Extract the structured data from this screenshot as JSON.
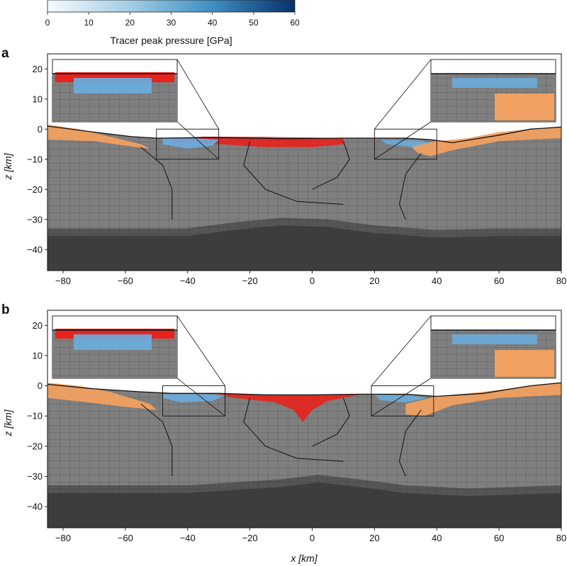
{
  "chart_data": {
    "type": "cross-section",
    "colorbar": {
      "label": "Tracer peak pressure [GPa]",
      "range": [
        0,
        60
      ],
      "ticks": [
        "0",
        "10",
        "20",
        "30",
        "40",
        "50",
        "60"
      ],
      "colors": [
        "#f7fbff",
        "#9ecae1",
        "#4292c6",
        "#08306b"
      ]
    },
    "xlabel": "x [km]",
    "ylabel": "z [km]",
    "xlim": [
      -85,
      80
    ],
    "ylim": [
      -47,
      25
    ],
    "xticks": [
      "−80",
      "−60",
      "−40",
      "−20",
      "0",
      "20",
      "40",
      "60",
      "80"
    ],
    "yticks": [
      "20",
      "10",
      "0",
      "−10",
      "−20",
      "−30",
      "−40"
    ],
    "xtick_values": [
      -80,
      -60,
      -40,
      -20,
      0,
      20,
      40,
      60,
      80
    ],
    "ytick_values": [
      20,
      10,
      0,
      -10,
      -20,
      -30,
      -40
    ],
    "colors": {
      "sediment": "#f0a060",
      "crust": "#7f7f7f",
      "mantle": "#3d3d3d",
      "melt": "#e8221c",
      "shocked": "#6aaee0"
    },
    "panels": [
      {
        "letter": "a",
        "show_xlabel": false,
        "surface": [
          [
            -85,
            1.0
          ],
          [
            -70,
            -1.0
          ],
          [
            -58,
            -2.5
          ],
          [
            -50,
            -3.0
          ],
          [
            -30,
            -2.8
          ],
          [
            -10,
            -3.2
          ],
          [
            10,
            -3.0
          ],
          [
            30,
            -3.0
          ],
          [
            38,
            -3.5
          ],
          [
            45,
            -4.5
          ],
          [
            60,
            -2.0
          ],
          [
            70,
            0.0
          ],
          [
            80,
            0.7
          ]
        ],
        "sediment_left": [
          [
            -85,
            1.5
          ],
          [
            -75,
            0.0
          ],
          [
            -65,
            -2.5
          ],
          [
            -55,
            -5.0
          ],
          [
            -52,
            -6.5
          ],
          [
            -60,
            -5.5
          ],
          [
            -70,
            -4.0
          ],
          [
            -85,
            -3.5
          ]
        ],
        "sediment_right": [
          [
            33,
            -5.0
          ],
          [
            40,
            -4.0
          ],
          [
            50,
            -3.0
          ],
          [
            60,
            -1.0
          ],
          [
            70,
            0.0
          ],
          [
            80,
            0.7
          ],
          [
            80,
            -3.0
          ],
          [
            60,
            -4.0
          ],
          [
            45,
            -7.0
          ],
          [
            38,
            -9.0
          ],
          [
            34,
            -8.0
          ],
          [
            32,
            -6.0
          ]
        ],
        "moho": [
          [
            -85,
            -33
          ],
          [
            -40,
            -33
          ],
          [
            -25,
            -31
          ],
          [
            -10,
            -29.5
          ],
          [
            5,
            -30
          ],
          [
            20,
            -32
          ],
          [
            40,
            -33.5
          ],
          [
            60,
            -33
          ],
          [
            80,
            -33
          ]
        ],
        "melt_zone": [
          [
            -45,
            -3.0
          ],
          [
            -35,
            -2.5
          ],
          [
            -15,
            -2.6
          ],
          [
            0,
            -2.8
          ],
          [
            10,
            -3.0
          ],
          [
            10,
            -5.0
          ],
          [
            0,
            -6.0
          ],
          [
            -15,
            -6.0
          ],
          [
            -30,
            -5.0
          ],
          [
            -45,
            -4.5
          ]
        ],
        "shocked_zone": [
          [
            -48,
            -3.0
          ],
          [
            -38,
            -3.0
          ],
          [
            -30,
            -3.5
          ],
          [
            -32,
            -5.5
          ],
          [
            -40,
            -6.5
          ],
          [
            -48,
            -5.0
          ]
        ],
        "shocked_zone_right": [
          [
            22,
            -3.5
          ],
          [
            34,
            -3.8
          ],
          [
            38,
            -4.5
          ],
          [
            32,
            -6.0
          ],
          [
            24,
            -5.0
          ]
        ],
        "zoom_left": [
          -50,
          -30,
          -10,
          0
        ],
        "zoom_right": [
          20,
          40,
          -10,
          0
        ]
      },
      {
        "letter": "b",
        "show_xlabel": true,
        "surface": [
          [
            -85,
            0.5
          ],
          [
            -70,
            -1.0
          ],
          [
            -55,
            -2.0
          ],
          [
            -45,
            -2.5
          ],
          [
            -30,
            -2.5
          ],
          [
            -15,
            -3.0
          ],
          [
            0,
            -3.0
          ],
          [
            15,
            -2.8
          ],
          [
            30,
            -2.8
          ],
          [
            40,
            -3.5
          ],
          [
            55,
            -2.5
          ],
          [
            70,
            0.0
          ],
          [
            80,
            1.0
          ]
        ],
        "sediment_left": [
          [
            -85,
            1.0
          ],
          [
            -75,
            0.0
          ],
          [
            -65,
            -2.0
          ],
          [
            -52,
            -6.0
          ],
          [
            -50,
            -8.0
          ],
          [
            -60,
            -7.0
          ],
          [
            -72,
            -5.5
          ],
          [
            -85,
            -4.0
          ]
        ],
        "sediment_right": [
          [
            30,
            -6.0
          ],
          [
            40,
            -3.5
          ],
          [
            55,
            -2.0
          ],
          [
            70,
            0.0
          ],
          [
            80,
            1.0
          ],
          [
            80,
            -3.0
          ],
          [
            60,
            -4.0
          ],
          [
            45,
            -6.5
          ],
          [
            36,
            -10.0
          ],
          [
            30,
            -9.5
          ]
        ],
        "moho": [
          [
            -85,
            -33
          ],
          [
            -40,
            -33
          ],
          [
            -25,
            -32
          ],
          [
            -10,
            -31
          ],
          [
            2,
            -29.5
          ],
          [
            15,
            -31
          ],
          [
            30,
            -33
          ],
          [
            50,
            -34
          ],
          [
            80,
            -33
          ]
        ],
        "melt_zone": [
          [
            -30,
            -2.8
          ],
          [
            -10,
            -2.9
          ],
          [
            5,
            -3.0
          ],
          [
            15,
            -3.0
          ],
          [
            5,
            -5.0
          ],
          [
            0,
            -8.0
          ],
          [
            -3,
            -12.0
          ],
          [
            -6,
            -8.0
          ],
          [
            -12,
            -5.5
          ],
          [
            -25,
            -4.0
          ]
        ],
        "shocked_zone": [
          [
            -48,
            -2.8
          ],
          [
            -35,
            -2.8
          ],
          [
            -28,
            -3.2
          ],
          [
            -32,
            -5.0
          ],
          [
            -42,
            -5.5
          ],
          [
            -48,
            -4.0
          ]
        ],
        "shocked_zone_right": [
          [
            20,
            -3.0
          ],
          [
            32,
            -3.2
          ],
          [
            37,
            -4.0
          ],
          [
            30,
            -5.5
          ],
          [
            22,
            -4.8
          ]
        ],
        "zoom_left": [
          -48,
          -28,
          -10,
          0
        ],
        "zoom_right": [
          19,
          39,
          -10,
          0
        ]
      }
    ]
  }
}
